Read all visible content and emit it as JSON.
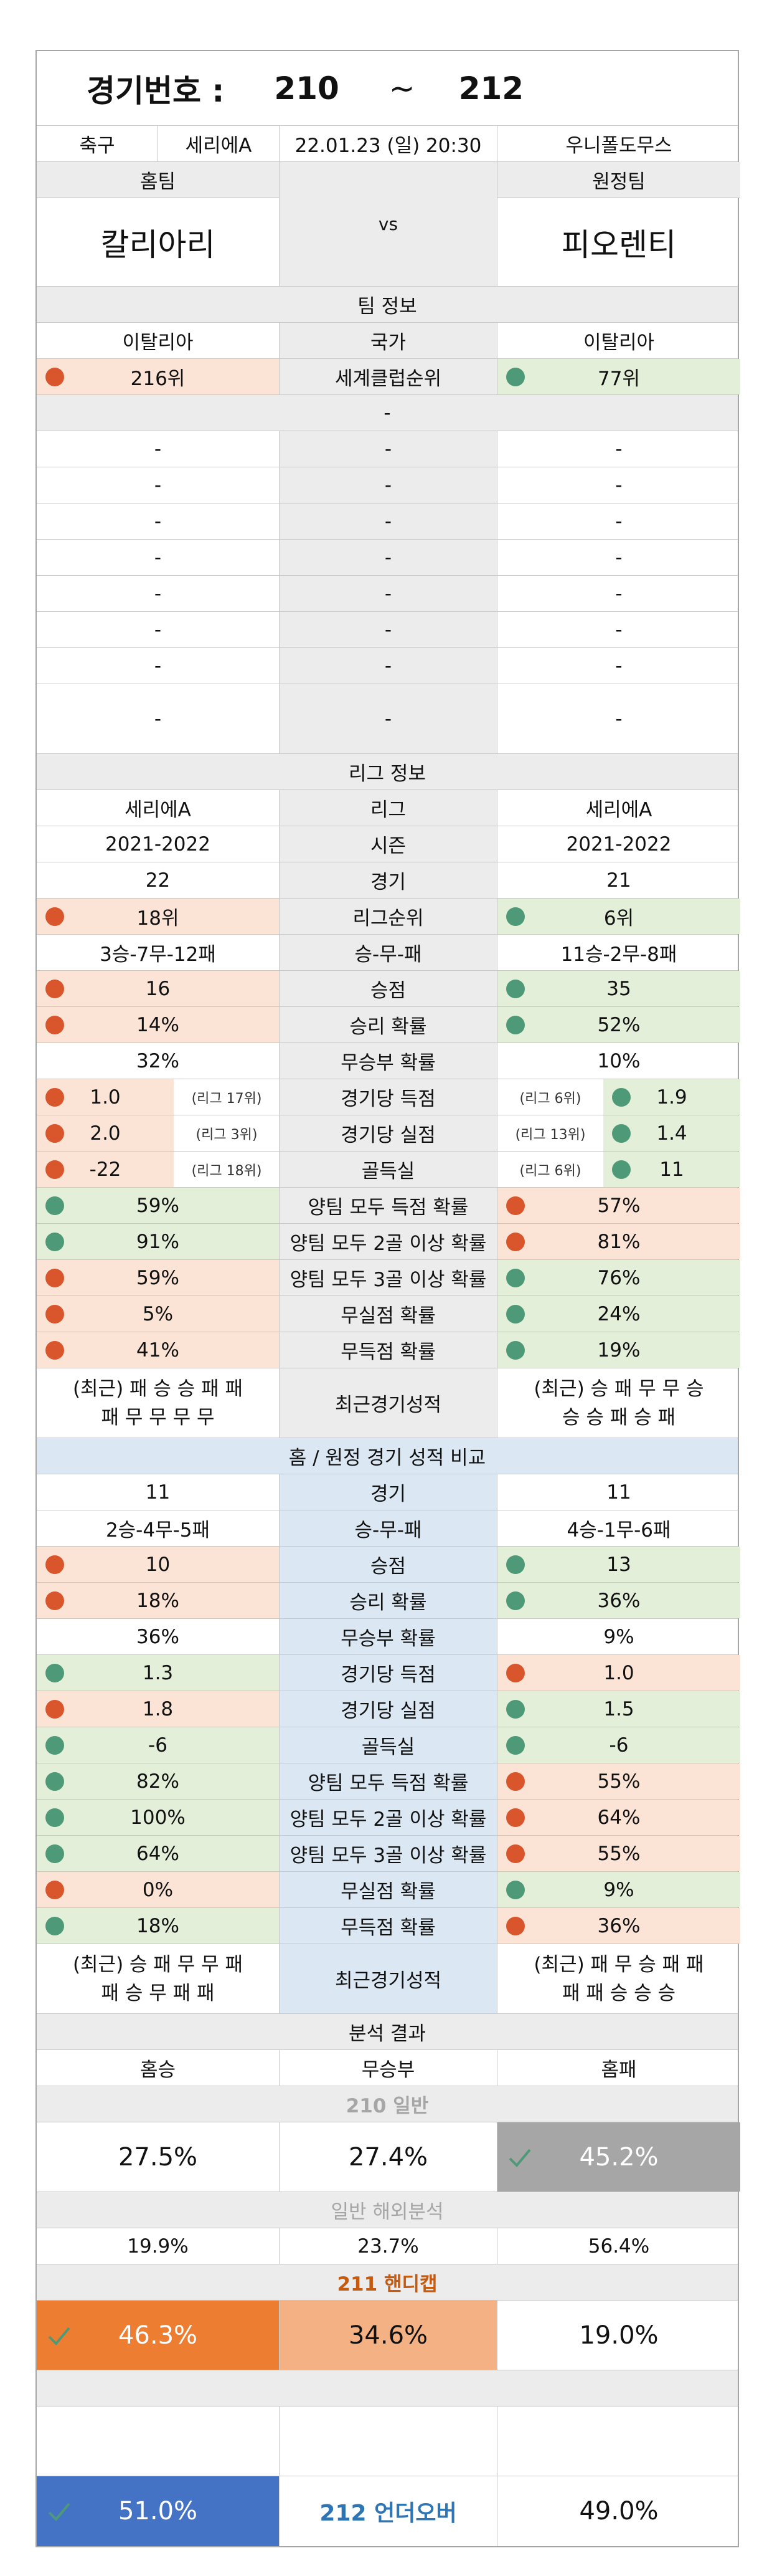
{
  "header": {
    "label": "경기번호 :",
    "from": "210",
    "tilde": "~",
    "to": "212"
  },
  "match": {
    "sport": "축구",
    "league": "세리에A",
    "datetime": "22.01.23 (일) 20:30",
    "venue": "우니폴도무스"
  },
  "teams": {
    "home_label": "홈팀",
    "away_label": "원정팀",
    "home": "칼리아리",
    "away": "피오렌티",
    "vs": "vs"
  },
  "team_info": {
    "title": "팀 정보",
    "country": {
      "home": "이탈리아",
      "label": "국가",
      "away": "이탈리아"
    },
    "club_rank": {
      "home": "216위",
      "label": "세계클럽순위",
      "away": "77위"
    },
    "dash": "-"
  },
  "league_info": {
    "title": "리그 정보",
    "rows": [
      {
        "home": "세리에A",
        "label": "리그",
        "away": "세리에A"
      },
      {
        "home": "2021-2022",
        "label": "시즌",
        "away": "2021-2022"
      },
      {
        "home": "22",
        "label": "경기",
        "away": "21"
      },
      {
        "home": "18위",
        "label": "리그순위",
        "away": "6위",
        "hc": "pink",
        "ac": "green",
        "hd": "red",
        "ad": "grn"
      },
      {
        "home": "3승-7무-12패",
        "label": "승-무-패",
        "away": "11승-2무-8패"
      },
      {
        "home": "16",
        "label": "승점",
        "away": "35",
        "hc": "pink",
        "ac": "green",
        "hd": "red",
        "ad": "grn"
      },
      {
        "home": "14%",
        "label": "승리 확률",
        "away": "52%",
        "hc": "pink",
        "ac": "green",
        "hd": "red",
        "ad": "grn"
      },
      {
        "home": "32%",
        "label": "무승부 확률",
        "away": "10%"
      }
    ],
    "ranked_rows": [
      {
        "home": "1.0",
        "home_rank": "(리그 17위)",
        "label": "경기당 득점",
        "away": "1.9",
        "away_rank": "(리그 6위)"
      },
      {
        "home": "2.0",
        "home_rank": "(리그 3위)",
        "label": "경기당 실점",
        "away": "1.4",
        "away_rank": "(리그 13위)"
      },
      {
        "home": "-22",
        "home_rank": "(리그 18위)",
        "label": "골득실",
        "away": "11",
        "away_rank": "(리그 6위)"
      }
    ],
    "prob_rows": [
      {
        "home": "59%",
        "label": "양팀 모두 득점 확률",
        "away": "57%",
        "hc": "green",
        "ac": "pink",
        "hd": "grn",
        "ad": "red"
      },
      {
        "home": "91%",
        "label": "양팀 모두 2골 이상 확률",
        "away": "81%",
        "hc": "green",
        "ac": "pink",
        "hd": "grn",
        "ad": "red"
      },
      {
        "home": "59%",
        "label": "양팀 모두 3골 이상 확률",
        "away": "76%",
        "hc": "pink",
        "ac": "green",
        "hd": "red",
        "ad": "grn"
      },
      {
        "home": "5%",
        "label": "무실점 확률",
        "away": "24%",
        "hc": "pink",
        "ac": "green",
        "hd": "red",
        "ad": "grn"
      },
      {
        "home": "41%",
        "label": "무득점 확률",
        "away": "19%",
        "hc": "pink",
        "ac": "green",
        "hd": "red",
        "ad": "grn"
      }
    ],
    "recent": {
      "home1": "(최근) 패 승 승 패 패",
      "home2": "패 무 무 무 무",
      "label": "최근경기성적",
      "away1": "(최근) 승 패 무 무 승",
      "away2": "승 승 패 승 패"
    }
  },
  "venue_compare": {
    "title": "홈 / 원정 경기 성적 비교",
    "rows": [
      {
        "home": "11",
        "label": "경기",
        "away": "11"
      },
      {
        "home": "2승-4무-5패",
        "label": "승-무-패",
        "away": "4승-1무-6패"
      },
      {
        "home": "10",
        "label": "승점",
        "away": "13",
        "hc": "pink",
        "ac": "green",
        "hd": "red",
        "ad": "grn"
      },
      {
        "home": "18%",
        "label": "승리 확률",
        "away": "36%",
        "hc": "pink",
        "ac": "green",
        "hd": "red",
        "ad": "grn"
      },
      {
        "home": "36%",
        "label": "무승부 확률",
        "away": "9%"
      },
      {
        "home": "1.3",
        "label": "경기당 득점",
        "away": "1.0",
        "hc": "green",
        "ac": "pink",
        "hd": "grn",
        "ad": "red"
      },
      {
        "home": "1.8",
        "label": "경기당 실점",
        "away": "1.5",
        "hc": "pink",
        "ac": "green",
        "hd": "red",
        "ad": "grn"
      },
      {
        "home": "-6",
        "label": "골득실",
        "away": "-6",
        "hc": "green",
        "ac": "green",
        "hd": "grn",
        "ad": "grn"
      },
      {
        "home": "82%",
        "label": "양팀 모두 득점 확률",
        "away": "55%",
        "hc": "green",
        "ac": "pink",
        "hd": "grn",
        "ad": "red"
      },
      {
        "home": "100%",
        "label": "양팀 모두 2골 이상 확률",
        "away": "64%",
        "hc": "green",
        "ac": "pink",
        "hd": "grn",
        "ad": "red"
      },
      {
        "home": "64%",
        "label": "양팀 모두 3골 이상 확률",
        "away": "55%",
        "hc": "green",
        "ac": "pink",
        "hd": "grn",
        "ad": "red"
      },
      {
        "home": "0%",
        "label": "무실점 확률",
        "away": "9%",
        "hc": "pink",
        "ac": "green",
        "hd": "red",
        "ad": "grn"
      },
      {
        "home": "18%",
        "label": "무득점 확률",
        "away": "36%",
        "hc": "green",
        "ac": "pink",
        "hd": "grn",
        "ad": "red"
      }
    ],
    "recent": {
      "home1": "(최근) 승 패 무 무 패",
      "home2": "패 승 무 패 패",
      "label": "최근경기성적",
      "away1": "(최근) 패 무 승 패 패",
      "away2": "패 패 승 승 승"
    }
  },
  "analysis": {
    "title": "분석 결과",
    "cols": {
      "home_win": "홈승",
      "draw": "무승부",
      "home_loss": "홈패"
    },
    "g210": {
      "title": "210 일반",
      "home_win": "27.5%",
      "draw": "27.4%",
      "home_loss": "45.2%"
    },
    "overseas": {
      "title": "일반 해외분석",
      "home_win": "19.9%",
      "draw": "23.7%",
      "home_loss": "56.4%"
    },
    "g211": {
      "title": "211 핸디캡",
      "home_win": "46.3%",
      "draw": "34.6%",
      "home_loss": "19.0%"
    },
    "g212": {
      "under": "51.0%",
      "title": "212 언더오버",
      "over": "49.0%"
    }
  },
  "colors": {
    "pick_gray": "#a6a6a6",
    "pick_orange": "#ed7d31",
    "draw_orange": "#f4b183",
    "pick_blue": "#4472c4",
    "title_orange": "#c55a11",
    "title_blue": "#2e75b6",
    "subtitle_gray": "#a6a6a6"
  }
}
